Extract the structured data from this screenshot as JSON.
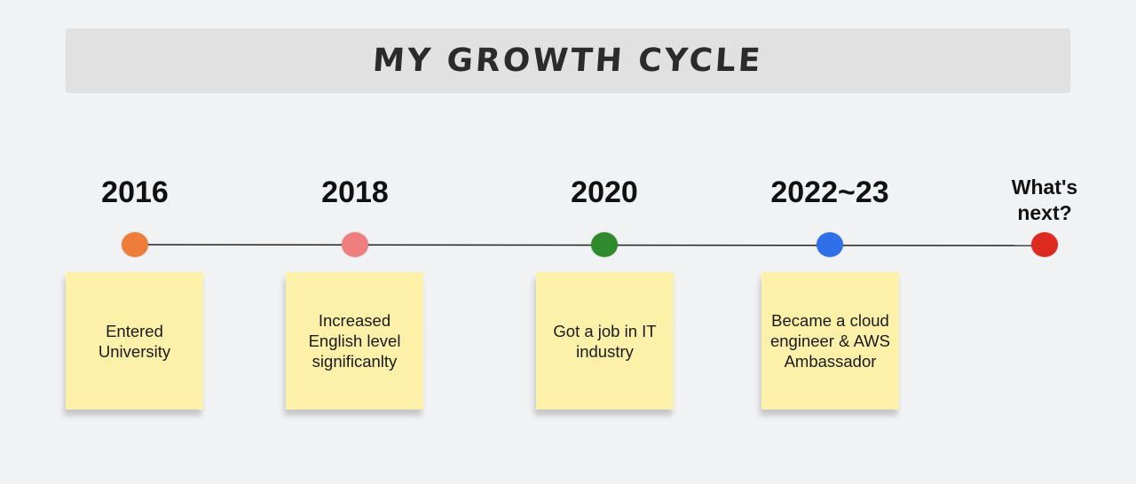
{
  "title": "MY GROWTH CYCLE",
  "milestones": [
    {
      "year": "2016",
      "color": "#ee7d3a",
      "note": "Entered University"
    },
    {
      "year": "2018",
      "color": "#ef7f7f",
      "note": "Increased English level significanlty"
    },
    {
      "year": "2020",
      "color": "#2f8a2b",
      "note": "Got a job in IT industry"
    },
    {
      "year": "2022~23",
      "color": "#2f6fe8",
      "note": "Became a cloud engineer & AWS Ambassador"
    },
    {
      "year": "What's next?",
      "color": "#dd2a20",
      "note": ""
    }
  ]
}
